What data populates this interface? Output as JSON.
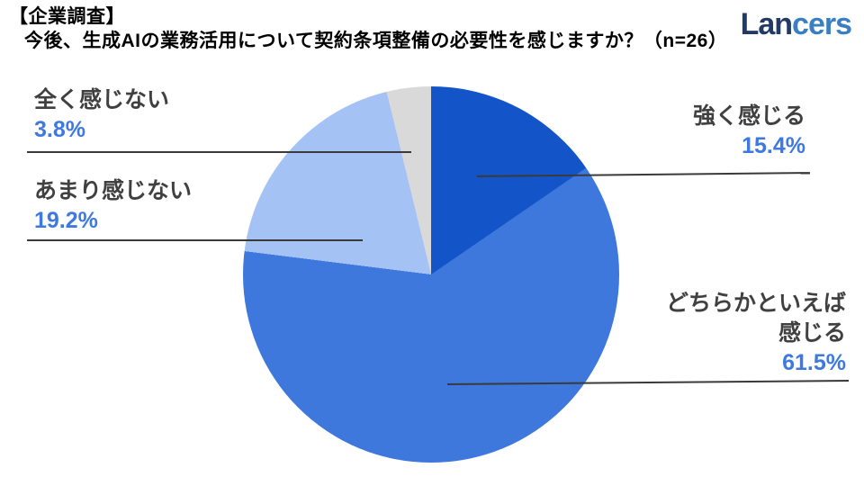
{
  "header": {
    "tag": "【企業調査】",
    "question": "今後、生成AIの業務活用について契約条項整備の必要性を感じますか？（n=26）"
  },
  "logo": {
    "part1": "Lan",
    "part2": "cers",
    "color1": "#223a64",
    "color2": "#3a7fc2"
  },
  "chart_data": {
    "type": "pie",
    "title": "今後、生成AIの業務活用について契約条項整備の必要性を感じますか？",
    "sample_size": "n=26",
    "start_angle_deg": 0,
    "direction": "clockwise",
    "legend_position": "outside-callout-labels",
    "segments": [
      {
        "label": "強く感じる",
        "value": 15.4,
        "color": "#1355c8"
      },
      {
        "label": "どちらかといえば感じる",
        "value": 61.5,
        "color": "#3e78dc"
      },
      {
        "label": "あまり感じない",
        "value": 19.2,
        "color": "#a4c3f4"
      },
      {
        "label": "全く感じない",
        "value": 3.8,
        "color": "#d9d9d9"
      }
    ]
  },
  "callouts": {
    "strong": {
      "name": "強く感じる",
      "pct": "15.4%"
    },
    "somewhat": {
      "name_line1": "どちらかといえば",
      "name_line2": "感じる",
      "pct": "61.5%"
    },
    "not_much": {
      "name": "あまり感じない",
      "pct": "19.2%"
    },
    "not_at_all": {
      "name": "全く感じない",
      "pct": "3.8%"
    }
  },
  "colors": {
    "percent_text": "#3d79e1",
    "label_text": "#404040",
    "leader_line": "#3a3a3a",
    "background": "#ffffff"
  }
}
